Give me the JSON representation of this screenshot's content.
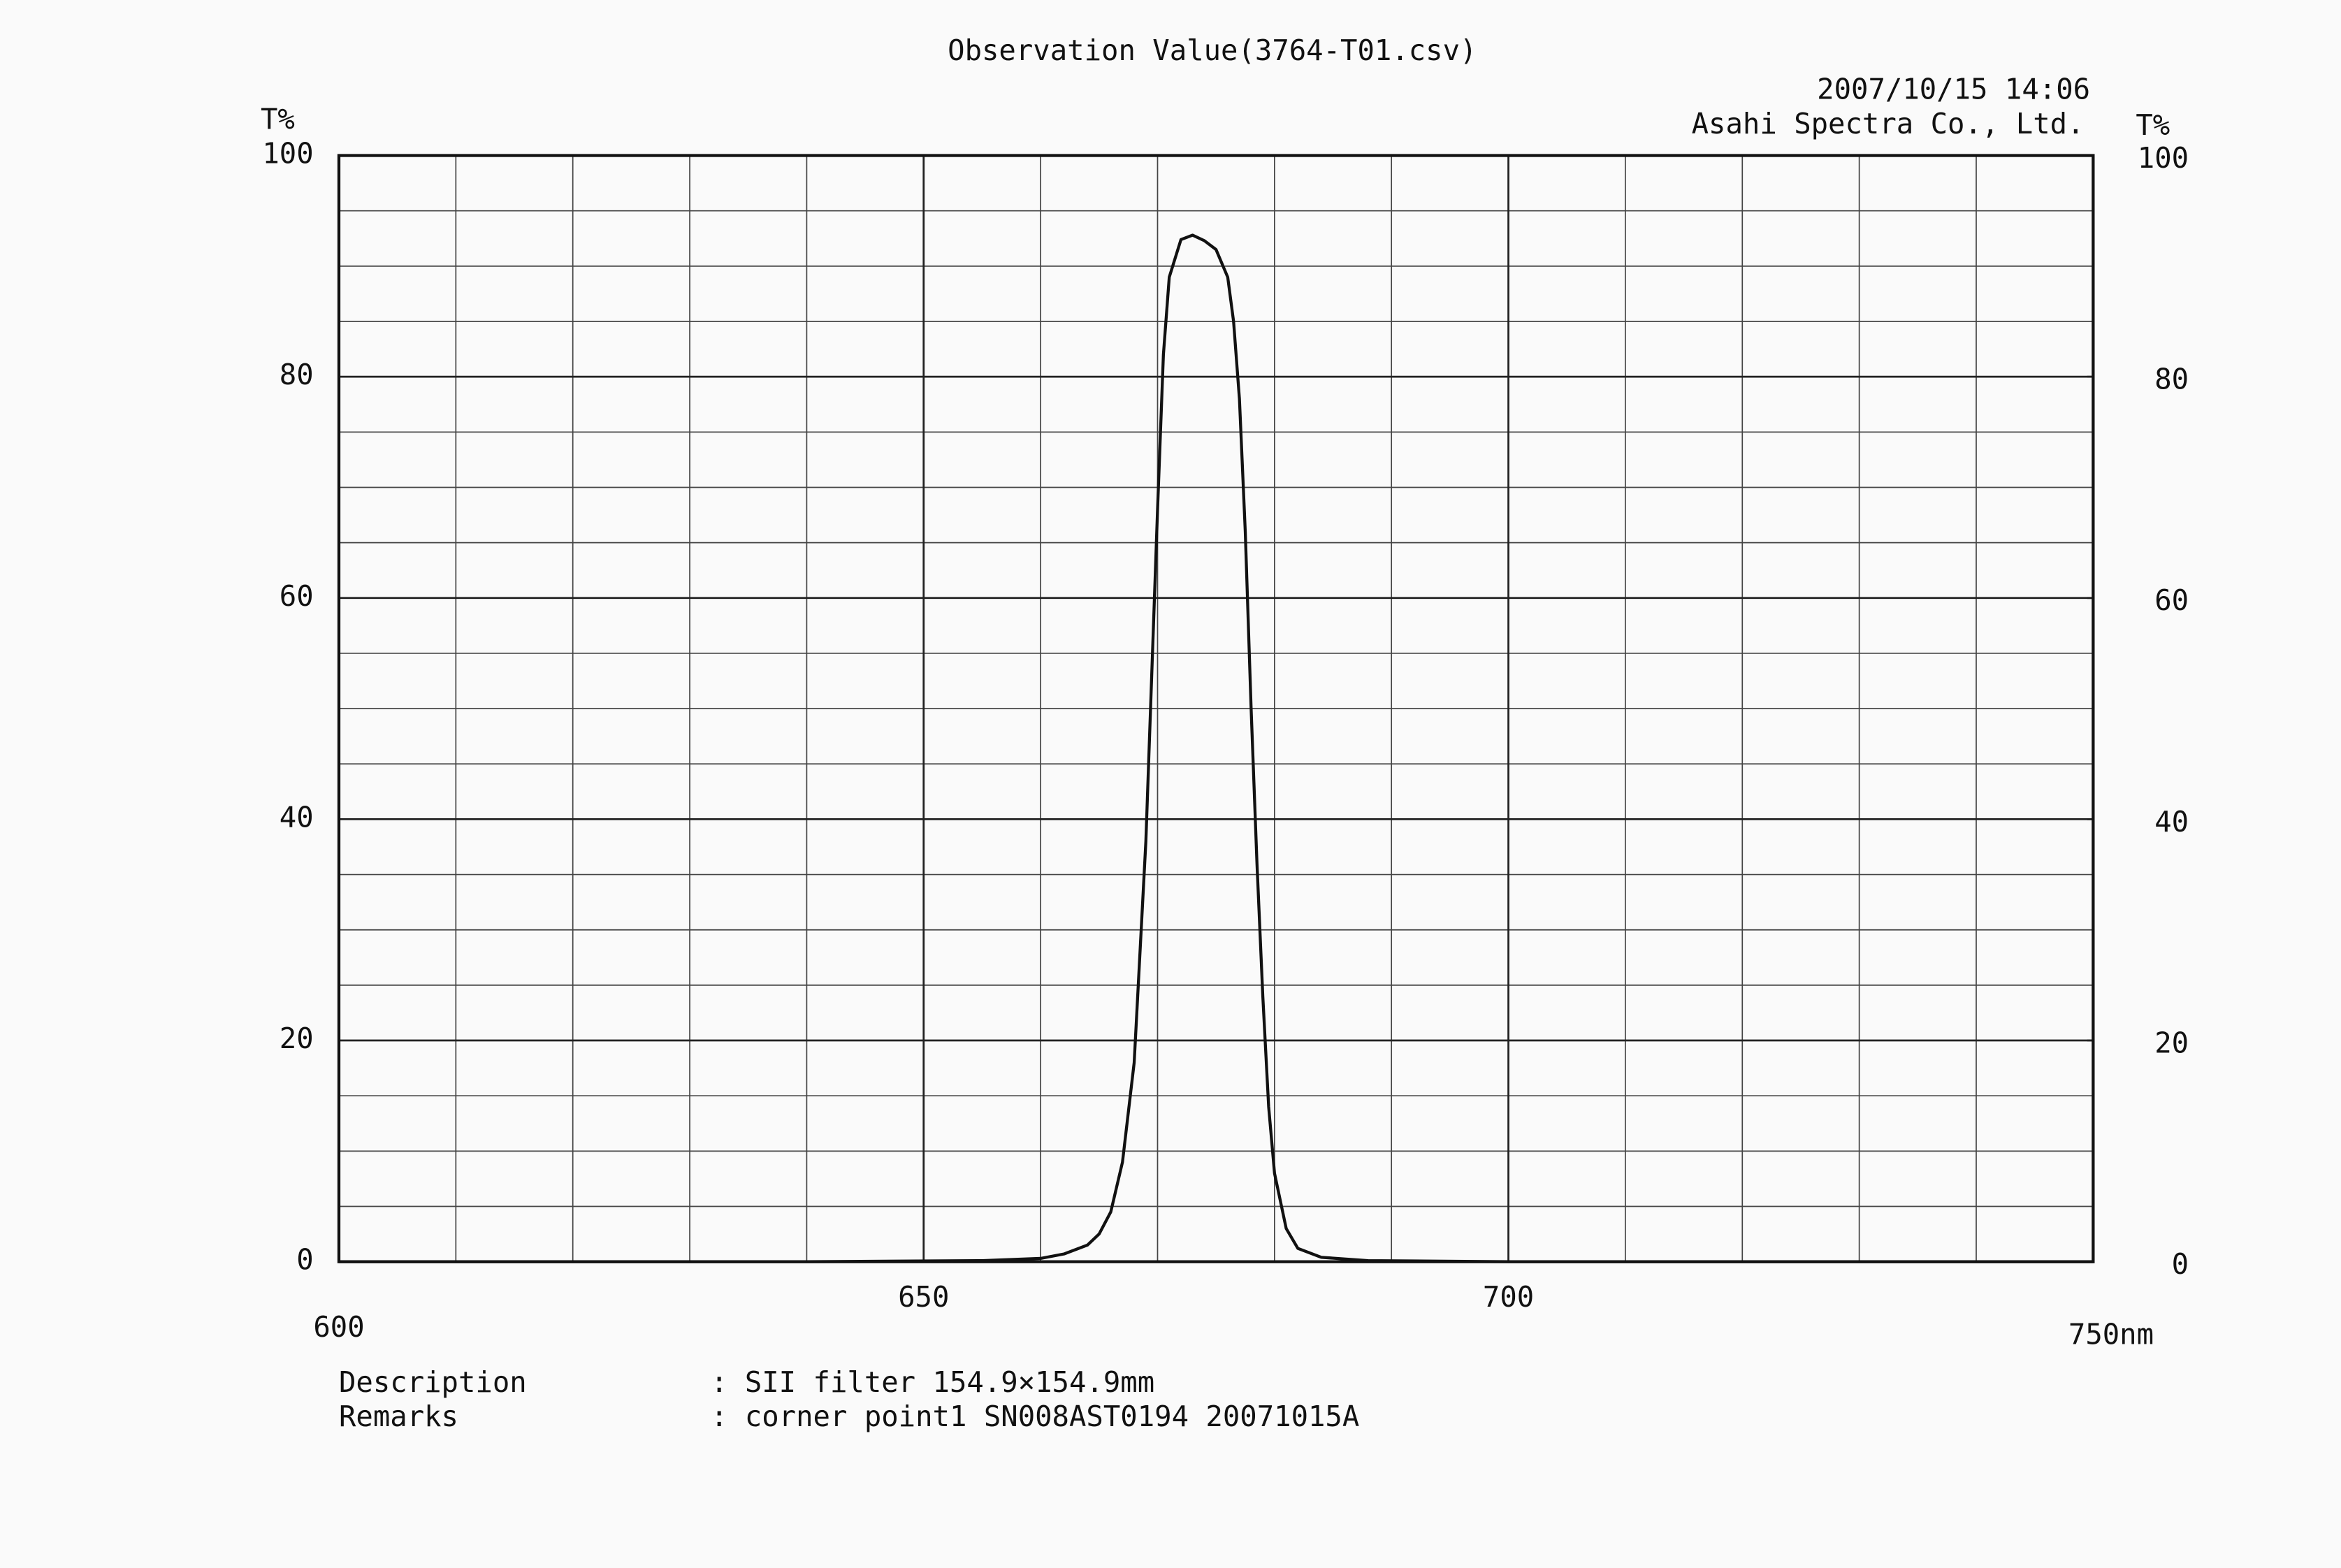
{
  "chart_data": {
    "type": "line",
    "title": "Observation Value(3764-T01.csv)",
    "datetime": "2007/10/15  14:06",
    "company": "Asahi Spectra Co., Ltd.",
    "ylabel": "T%",
    "y2label": "T%",
    "description_label": "Description",
    "description": ": SII filter 154.9×154.9mm",
    "remarks_label": "Remarks",
    "remarks": ": corner point1 SN008AST0194 20071015A",
    "x": [
      600,
      620,
      640,
      655,
      660,
      662,
      664,
      665,
      666,
      667,
      668,
      669,
      670,
      670.5,
      671,
      672,
      673,
      674,
      675,
      676,
      676.5,
      677,
      677.5,
      678,
      678.5,
      679,
      679.5,
      680,
      681,
      682,
      684,
      688,
      700,
      720,
      750
    ],
    "values": [
      0,
      0,
      0,
      0.1,
      0.3,
      0.7,
      1.5,
      2.5,
      4.5,
      9,
      18,
      38,
      68,
      82,
      89,
      92.4,
      92.8,
      92.3,
      91.5,
      89,
      85,
      78,
      66,
      50,
      36,
      24,
      14,
      8,
      3,
      1.2,
      0.4,
      0.1,
      0,
      0,
      0
    ],
    "color": "#111111",
    "xlim": [
      600,
      750
    ],
    "xticks": [
      600,
      650,
      700,
      {
        "value": 750,
        "label": "750nm"
      }
    ],
    "ylim": [
      0,
      100
    ],
    "yticks": [
      0,
      20,
      40,
      60,
      80,
      100
    ],
    "y2lim": [
      0,
      100
    ],
    "y2ticks": [
      0,
      20,
      40,
      60,
      80,
      100
    ],
    "grid": true
  }
}
